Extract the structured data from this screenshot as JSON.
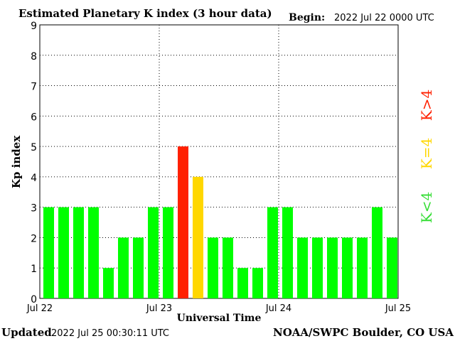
{
  "header": {
    "title": "Estimated Planetary K index (3 hour data)",
    "begin_label": "Begin:",
    "begin_value": "2022 Jul 22 0000 UTC"
  },
  "footer": {
    "updated_label": "Updated",
    "updated_value": "2022 Jul 25 00:30:11 UTC",
    "credit": "NOAA/SWPC Boulder, CO USA"
  },
  "legend": {
    "low": "K<4",
    "mid": "K=4",
    "high": "K>4"
  },
  "colors": {
    "low": "#00ff00",
    "mid": "#ffd700",
    "high": "#ff2000",
    "legend_low": "#33dd33",
    "legend_mid": "#ffd700",
    "legend_high": "#ff2000"
  },
  "chart_data": {
    "type": "bar",
    "title": "Estimated Planetary K index (3 hour data)",
    "xlabel": "Universal Time",
    "ylabel": "Kp index",
    "ylim": [
      0,
      9
    ],
    "yticks": [
      "0",
      "1",
      "2",
      "3",
      "4",
      "5",
      "6",
      "7",
      "8",
      "9"
    ],
    "xticks": [
      "Jul 22",
      "Jul 23",
      "Jul 24",
      "Jul 25"
    ],
    "grid": true,
    "values": [
      3,
      3,
      3,
      3,
      1,
      2,
      2,
      3,
      3,
      5,
      4,
      2,
      2,
      1,
      1,
      3,
      3,
      2,
      2,
      2,
      2,
      2,
      3,
      2
    ]
  }
}
